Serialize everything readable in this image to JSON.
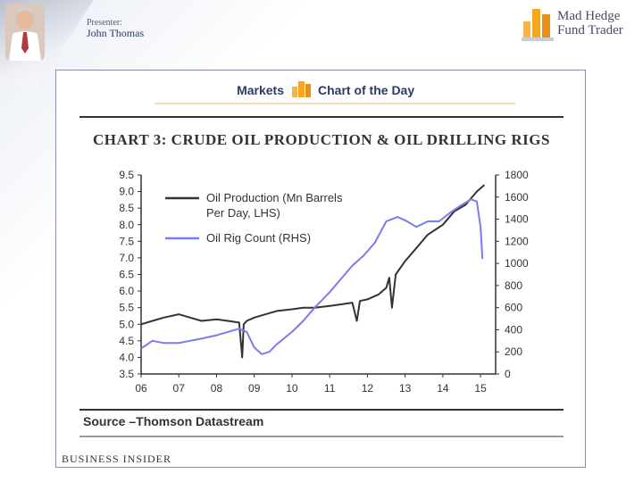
{
  "presenter": {
    "label": "Presenter:",
    "name": "John Thomas"
  },
  "brand": {
    "line1": "Mad Hedge",
    "line2": "Fund Trader",
    "accent": "#f5a623"
  },
  "banner": {
    "left": "Markets",
    "right": "Chart of the Day"
  },
  "source": "Source –Thomson Datastream",
  "credit": "BUSINESS INSIDER",
  "colors": {
    "production": "#333333",
    "rigs": "#7b7bf0"
  },
  "chart_data": {
    "type": "line",
    "title": "CHART 3: CRUDE OIL PRODUCTION & OIL DRILLING RIGS",
    "xlabel": "",
    "ylabel": "",
    "x_ticks": [
      "06",
      "07",
      "08",
      "09",
      "10",
      "11",
      "12",
      "13",
      "14",
      "15"
    ],
    "xlim": [
      2006.0,
      2015.4
    ],
    "y_left": {
      "lim": [
        3.5,
        9.5
      ],
      "ticks": [
        "3.5",
        "4.0",
        "4.5",
        "5.0",
        "5.5",
        "6.0",
        "6.5",
        "7.0",
        "7.5",
        "8.0",
        "8.5",
        "9.0",
        "9.5"
      ]
    },
    "y_right": {
      "lim": [
        0,
        1800
      ],
      "ticks": [
        "0",
        "200",
        "400",
        "600",
        "800",
        "1000",
        "1200",
        "1400",
        "1600",
        "1800"
      ]
    },
    "legend_position": "top-left",
    "series": [
      {
        "name": "Oil Production (Mn Barrels Per Day, LHS)",
        "axis": "left",
        "color": "#333333",
        "x": [
          2006.0,
          2006.3,
          2006.6,
          2007.0,
          2007.3,
          2007.6,
          2008.0,
          2008.3,
          2008.6,
          2008.68,
          2008.72,
          2008.8,
          2009.0,
          2009.3,
          2009.6,
          2010.0,
          2010.3,
          2010.6,
          2011.0,
          2011.3,
          2011.6,
          2011.72,
          2011.8,
          2012.0,
          2012.3,
          2012.5,
          2012.58,
          2012.65,
          2012.75,
          2013.0,
          2013.3,
          2013.6,
          2014.0,
          2014.3,
          2014.6,
          2014.9,
          2015.1
        ],
        "y": [
          5.0,
          5.1,
          5.2,
          5.3,
          5.2,
          5.1,
          5.15,
          5.1,
          5.05,
          4.0,
          5.0,
          5.1,
          5.2,
          5.3,
          5.4,
          5.45,
          5.5,
          5.5,
          5.55,
          5.6,
          5.65,
          5.1,
          5.7,
          5.75,
          5.9,
          6.1,
          6.4,
          5.5,
          6.5,
          6.9,
          7.3,
          7.7,
          8.0,
          8.4,
          8.6,
          9.0,
          9.2
        ]
      },
      {
        "name": "Oil Rig Count (RHS)",
        "axis": "right",
        "color": "#7b7bf0",
        "x": [
          2006.0,
          2006.3,
          2006.6,
          2007.0,
          2007.3,
          2007.6,
          2008.0,
          2008.3,
          2008.6,
          2008.8,
          2009.0,
          2009.2,
          2009.4,
          2009.6,
          2010.0,
          2010.3,
          2010.6,
          2011.0,
          2011.3,
          2011.6,
          2011.9,
          2012.2,
          2012.5,
          2012.8,
          2013.0,
          2013.3,
          2013.6,
          2013.9,
          2014.2,
          2014.5,
          2014.75,
          2014.9,
          2015.0,
          2015.05
        ],
        "y": [
          230,
          300,
          280,
          280,
          300,
          320,
          350,
          380,
          410,
          380,
          240,
          180,
          200,
          270,
          380,
          480,
          600,
          740,
          860,
          980,
          1070,
          1190,
          1380,
          1420,
          1390,
          1330,
          1380,
          1380,
          1460,
          1530,
          1580,
          1560,
          1330,
          1040
        ]
      }
    ]
  }
}
